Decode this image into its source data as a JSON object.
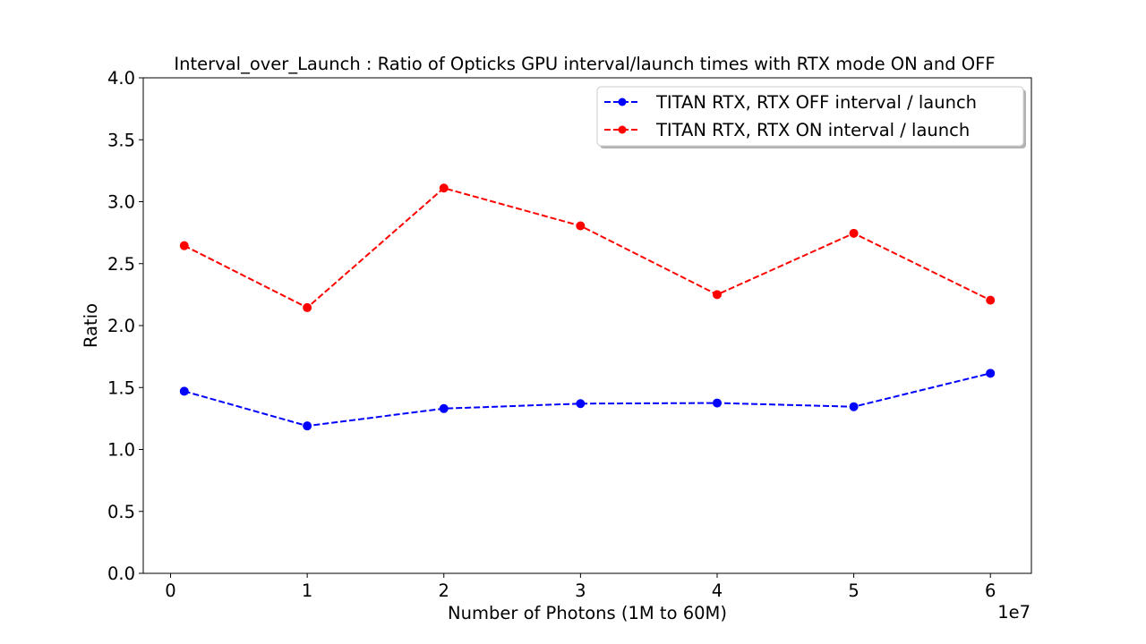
{
  "chart_data": {
    "type": "line",
    "title": "Interval_over_Launch : Ratio of Opticks GPU interval/launch times with RTX mode ON and OFF",
    "xlabel": "Number of Photons (1M to 60M)",
    "ylabel": "Ratio",
    "x_offset_label": "1e7",
    "xlim": [
      -0.2,
      6.3
    ],
    "ylim": [
      0.0,
      4.0
    ],
    "x_ticks": [
      0,
      1,
      2,
      3,
      4,
      5,
      6
    ],
    "x_tick_labels": [
      "0",
      "1",
      "2",
      "3",
      "4",
      "5",
      "6"
    ],
    "y_ticks": [
      0.0,
      0.5,
      1.0,
      1.5,
      2.0,
      2.5,
      3.0,
      3.5,
      4.0
    ],
    "y_tick_labels": [
      "0.0",
      "0.5",
      "1.0",
      "1.5",
      "2.0",
      "2.5",
      "3.0",
      "3.5",
      "4.0"
    ],
    "grid": false,
    "legend_position": "upper right",
    "x": [
      0.1,
      1.0,
      2.0,
      3.0,
      4.0,
      5.0,
      6.0
    ],
    "series": [
      {
        "name": "TITAN RTX, RTX OFF  interval / launch",
        "color": "#0000ff",
        "line_style": "dashed",
        "marker": "circle",
        "values": [
          1.47,
          1.19,
          1.33,
          1.37,
          1.375,
          1.345,
          1.615
        ]
      },
      {
        "name": "TITAN RTX, RTX ON  interval / launch",
        "color": "#ff0000",
        "line_style": "dashed",
        "marker": "circle",
        "values": [
          2.645,
          2.145,
          3.11,
          2.805,
          2.25,
          2.745,
          2.205
        ]
      }
    ]
  }
}
